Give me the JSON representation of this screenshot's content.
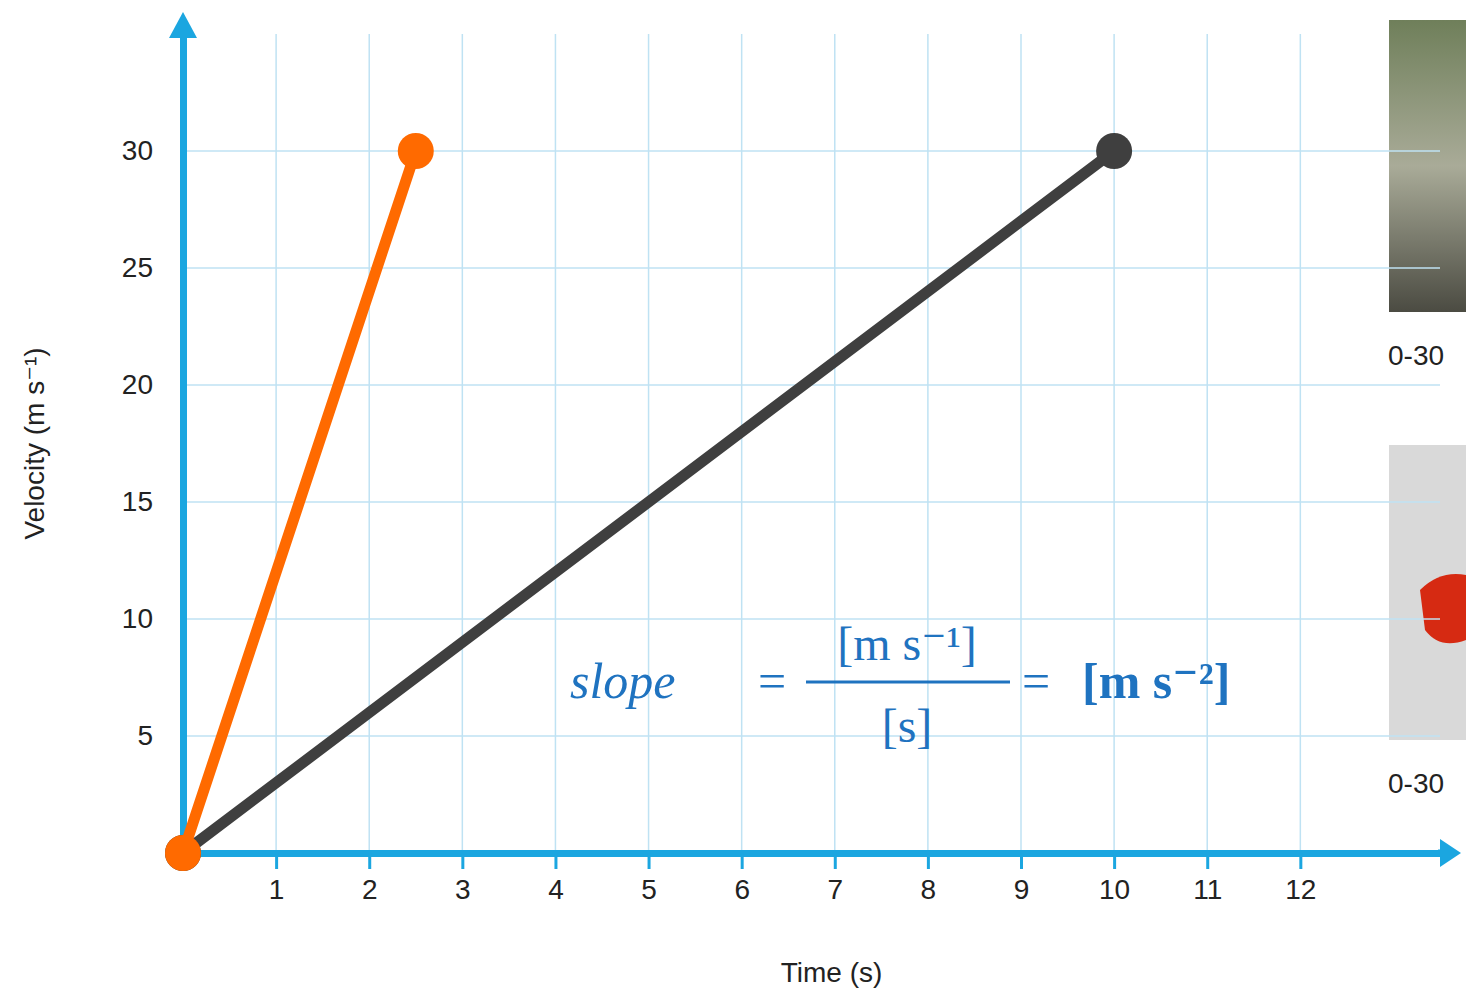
{
  "chart_data": {
    "type": "line",
    "x_label": "Time (s)",
    "y_label": "Velocity (m s⁻¹)",
    "xlim": [
      0,
      13.5
    ],
    "ylim": [
      0,
      35
    ],
    "xticks": [
      1,
      2,
      3,
      4,
      5,
      6,
      7,
      8,
      9,
      10,
      11,
      12
    ],
    "yticks": [
      5,
      10,
      15,
      20,
      25,
      30
    ],
    "grid": true,
    "series": [
      {
        "color": "#3f3f3f",
        "marker": "circle",
        "line_style": "solid",
        "x": [
          0,
          10
        ],
        "values": [
          0,
          30
        ]
      },
      {
        "color": "#ff6a00",
        "marker": "circle",
        "line_style": "solid",
        "x": [
          0,
          2.5
        ],
        "values": [
          0,
          30
        ]
      }
    ],
    "formula": {
      "lhs": "slope",
      "equals": "=",
      "numerator": "[m s⁻¹]",
      "denominator": "[s]",
      "result": "[m s⁻²]"
    },
    "annotations": [
      "0-30",
      "0-30"
    ]
  }
}
